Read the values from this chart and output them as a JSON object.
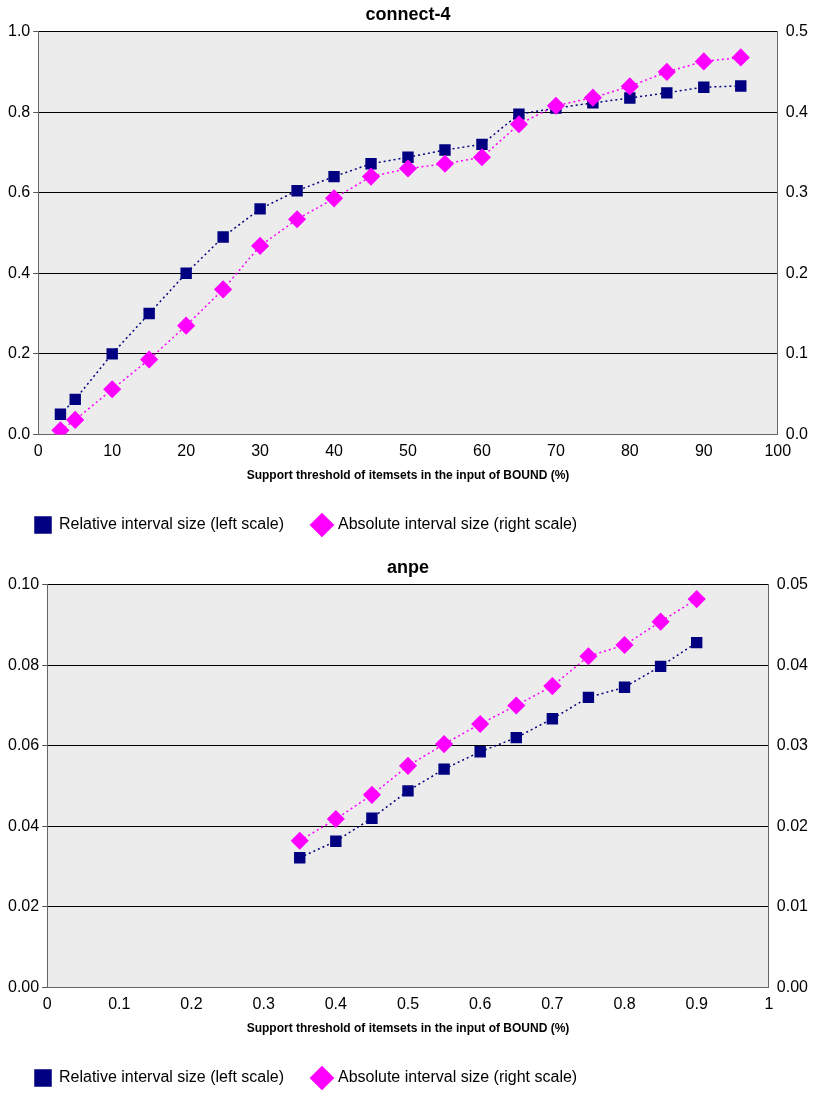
{
  "chart_data": [
    {
      "type": "line",
      "title": "connect-4",
      "xlabel": "Support threshold of itemsets in the input of BOUND (%)",
      "x": [
        3,
        5,
        10,
        15,
        20,
        25,
        30,
        35,
        40,
        45,
        50,
        55,
        60,
        65,
        70,
        75,
        80,
        85,
        90,
        95
      ],
      "series": [
        {
          "name": "Relative interval size (left scale)",
          "color": "#000080",
          "marker": "square",
          "values": [
            0.05,
            0.087,
            0.2,
            0.3,
            0.4,
            0.49,
            0.56,
            0.605,
            0.64,
            0.672,
            0.688,
            0.706,
            0.72,
            0.795,
            0.81,
            0.823,
            0.835,
            0.848,
            0.862,
            0.865
          ]
        },
        {
          "name": "Absolute interval size (right scale)",
          "color": "#ff00ff",
          "marker": "diamond",
          "axis": "y2",
          "values": [
            0.005,
            0.018,
            0.056,
            0.093,
            0.135,
            0.18,
            0.234,
            0.267,
            0.293,
            0.32,
            0.33,
            0.336,
            0.344,
            0.385,
            0.408,
            0.418,
            0.432,
            0.45,
            0.463,
            0.468
          ]
        }
      ],
      "xlim": [
        0,
        100
      ],
      "xticks": [
        0,
        10,
        20,
        30,
        40,
        50,
        60,
        70,
        80,
        90,
        100
      ],
      "ylim": [
        0,
        1
      ],
      "yticks": [
        {
          "value": 0,
          "label": "0.0"
        },
        0.2,
        0.4,
        0.6,
        0.8,
        {
          "value": 1,
          "label": "1.0"
        }
      ],
      "y2lim": [
        0,
        0.5
      ],
      "y2ticks": [
        {
          "value": 0,
          "label": "0.0"
        },
        0.1,
        0.2,
        0.3,
        0.4,
        0.5
      ],
      "grid": "y",
      "legend": "bottom",
      "line_style": "dotted"
    },
    {
      "type": "line",
      "title": "anpe",
      "xlabel": "Support threshold of itemsets in the input of BOUND (%)",
      "x": [
        0.35,
        0.4,
        0.45,
        0.5,
        0.55,
        0.6,
        0.65,
        0.7,
        0.75,
        0.8,
        0.85,
        0.9
      ],
      "series": [
        {
          "name": "Relative interval size (left scale)",
          "color": "#000080",
          "marker": "square",
          "values": [
            0.0322,
            0.0363,
            0.042,
            0.0488,
            0.0542,
            0.0585,
            0.062,
            0.0667,
            0.072,
            0.0745,
            0.0797,
            0.0856
          ]
        },
        {
          "name": "Absolute interval size (right scale)",
          "color": "#ff00ff",
          "marker": "diamond",
          "axis": "y2",
          "values": [
            0.0182,
            0.0209,
            0.0239,
            0.0275,
            0.0302,
            0.0327,
            0.035,
            0.0374,
            0.0411,
            0.0425,
            0.0454,
            0.0482
          ]
        }
      ],
      "xlim": [
        0,
        1
      ],
      "xticks": [
        0,
        0.1,
        0.2,
        0.3,
        0.4,
        0.5,
        0.6,
        0.7,
        0.8,
        0.9,
        1
      ],
      "ylim": [
        0,
        0.1
      ],
      "yticks": [
        {
          "value": 0,
          "label": "0.00"
        },
        0.02,
        0.04,
        0.06,
        0.08,
        {
          "value": 0.1,
          "label": "0.10"
        }
      ],
      "y2lim": [
        0,
        0.05
      ],
      "y2ticks": [
        {
          "value": 0,
          "label": "0.00"
        },
        0.01,
        0.02,
        0.03,
        0.04,
        0.05
      ],
      "grid": "y",
      "legend": "bottom",
      "line_style": "dotted"
    }
  ]
}
